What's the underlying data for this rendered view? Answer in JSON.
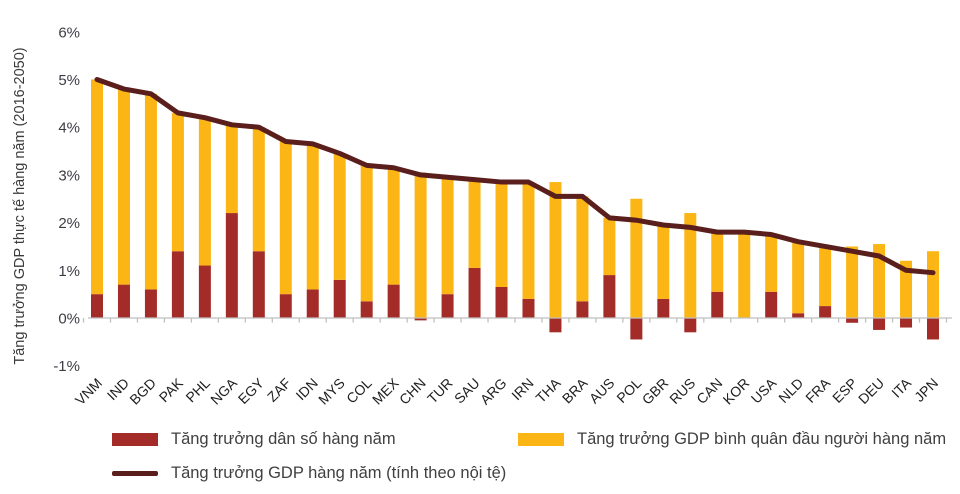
{
  "chart_data": {
    "type": "bar",
    "subtype": "stacked-bar-with-line",
    "title": "",
    "xlabel": "",
    "ylabel": "Tăng trưởng GDP thực tế hàng năm (2016-2050)",
    "ylim": [
      -1.5,
      6.2
    ],
    "yticks": [
      6,
      5,
      4,
      3,
      2,
      1,
      0,
      -1
    ],
    "ytick_labels": [
      "6%",
      "5%",
      "4%",
      "3%",
      "2%",
      "1%",
      "0%",
      "-1%"
    ],
    "grid": false,
    "legend_position": "bottom",
    "categories": [
      "VNM",
      "IND",
      "BGD",
      "PAK",
      "PHL",
      "NGA",
      "EGY",
      "ZAF",
      "IDN",
      "MYS",
      "COL",
      "MEX",
      "CHN",
      "TUR",
      "SAU",
      "ARG",
      "IRN",
      "THA",
      "BRA",
      "AUS",
      "POL",
      "GBR",
      "RUS",
      "CAN",
      "KOR",
      "USA",
      "NLD",
      "FRA",
      "ESP",
      "DEU",
      "ITA",
      "JPN"
    ],
    "series": [
      {
        "name": "Tăng trưởng dân số hàng năm",
        "type": "bar",
        "color": "#A32C28",
        "values": [
          0.5,
          0.7,
          0.6,
          1.4,
          1.1,
          2.2,
          1.4,
          0.5,
          0.6,
          0.8,
          0.35,
          0.7,
          -0.05,
          0.5,
          1.05,
          0.65,
          0.4,
          -0.3,
          0.35,
          0.9,
          -0.45,
          0.4,
          -0.3,
          0.55,
          0.0,
          0.55,
          0.1,
          0.25,
          -0.1,
          -0.25,
          -0.2,
          -0.45
        ]
      },
      {
        "name": "Tăng trưởng GDP bình quân đầu người hàng năm",
        "type": "bar",
        "color": "#FBB615",
        "values": [
          4.5,
          4.1,
          4.1,
          2.9,
          3.1,
          1.85,
          2.6,
          3.2,
          3.05,
          2.65,
          2.85,
          2.45,
          3.05,
          2.45,
          1.85,
          2.2,
          2.45,
          2.85,
          2.2,
          1.2,
          2.5,
          1.55,
          2.2,
          1.25,
          1.8,
          1.2,
          1.5,
          1.25,
          1.5,
          1.55,
          1.2,
          1.4
        ]
      },
      {
        "name": "Tăng trưởng GDP hàng năm (tính theo nội tệ)",
        "type": "line",
        "color": "#5A1E1C",
        "values": [
          5.0,
          4.8,
          4.7,
          4.3,
          4.2,
          4.05,
          4.0,
          3.7,
          3.65,
          3.45,
          3.2,
          3.15,
          3.0,
          2.95,
          2.9,
          2.85,
          2.85,
          2.55,
          2.55,
          2.1,
          2.05,
          1.95,
          1.9,
          1.8,
          1.8,
          1.75,
          1.6,
          1.5,
          1.4,
          1.3,
          1.0,
          0.95
        ]
      }
    ],
    "axis_color": "#BFBFBF",
    "ytick_text_color": "#3C3C44",
    "xtick_text_color": "#1F1F1F"
  }
}
